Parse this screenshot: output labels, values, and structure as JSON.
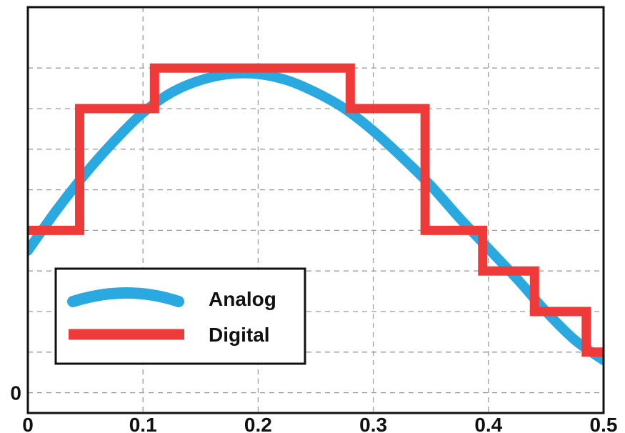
{
  "chart_data": {
    "type": "line",
    "title": "",
    "xlabel": "",
    "ylabel": "",
    "xlim": [
      0,
      0.5
    ],
    "ylim": [
      -0.05,
      0.95
    ],
    "x_ticks": [
      0,
      0.1,
      0.2,
      0.3,
      0.4,
      0.5
    ],
    "x_tick_labels": [
      "0",
      "0.1",
      "0.2",
      "0.3",
      "0.4",
      "0.5"
    ],
    "y_ticks": [
      0
    ],
    "y_tick_labels": [
      "0"
    ],
    "y_grid": [
      0,
      0.1,
      0.2,
      0.3,
      0.4,
      0.5,
      0.6,
      0.7,
      0.8
    ],
    "grid": true,
    "legend_position": "bottom-left",
    "series": [
      {
        "name": "Analog",
        "color": "#2aa8e0",
        "style": "smooth",
        "x": [
          0,
          0.025,
          0.05,
          0.075,
          0.1,
          0.125,
          0.15,
          0.175,
          0.2,
          0.225,
          0.25,
          0.275,
          0.3,
          0.325,
          0.35,
          0.375,
          0.4,
          0.425,
          0.45,
          0.475,
          0.5
        ],
        "y": [
          0.35,
          0.45,
          0.54,
          0.62,
          0.69,
          0.74,
          0.77,
          0.785,
          0.785,
          0.77,
          0.74,
          0.7,
          0.645,
          0.58,
          0.51,
          0.43,
          0.355,
          0.28,
          0.2,
          0.13,
          0.08
        ]
      },
      {
        "name": "Digital",
        "color": "#ef3a3a",
        "style": "step",
        "x": [
          0,
          0.045,
          0.045,
          0.11,
          0.11,
          0.28,
          0.28,
          0.345,
          0.345,
          0.395,
          0.395,
          0.44,
          0.44,
          0.485,
          0.485,
          0.5
        ],
        "y": [
          0.4,
          0.4,
          0.7,
          0.7,
          0.8,
          0.8,
          0.7,
          0.7,
          0.4,
          0.4,
          0.3,
          0.3,
          0.2,
          0.2,
          0.1,
          0.1
        ]
      }
    ]
  }
}
